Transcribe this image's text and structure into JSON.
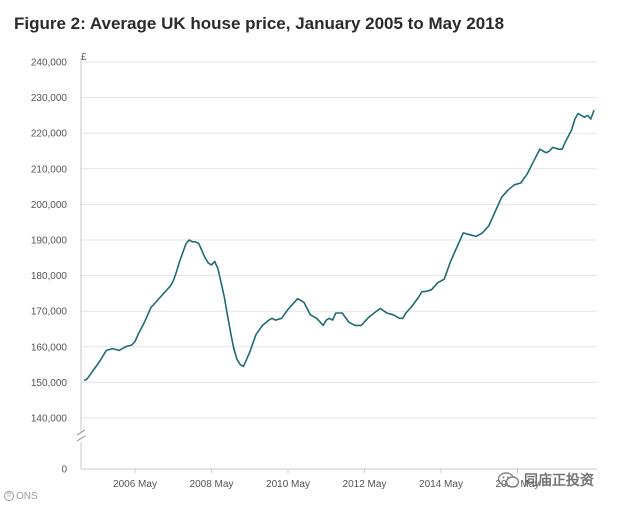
{
  "figure": {
    "title": "Figure 2: Average UK house price, January 2005 to May 2018"
  },
  "footer": {
    "credit": "ONS"
  },
  "watermark": {
    "text": "同庙正投资"
  },
  "colors": {
    "line": "#1f6b73",
    "grid": "#e3e3e3",
    "axis": "#c8c8c8",
    "text": "#555555"
  },
  "chart_data": {
    "type": "line",
    "title": "Figure 2: Average UK house price, January 2005 to May 2018",
    "unit_label": "£",
    "xlabel": "",
    "ylabel": "",
    "ylim": [
      140000,
      240000
    ],
    "y_axis_broken": true,
    "grid": true,
    "y_ticks": [
      {
        "value": 240000,
        "label": "240,000"
      },
      {
        "value": 230000,
        "label": "230,000"
      },
      {
        "value": 220000,
        "label": "220,000"
      },
      {
        "value": 210000,
        "label": "210,000"
      },
      {
        "value": 200000,
        "label": "200,000"
      },
      {
        "value": 190000,
        "label": "190,000"
      },
      {
        "value": 180000,
        "label": "180,000"
      },
      {
        "value": 170000,
        "label": "170,000"
      },
      {
        "value": 160000,
        "label": "160,000"
      },
      {
        "value": 150000,
        "label": "150,000"
      },
      {
        "value": 140000,
        "label": "140,000"
      }
    ],
    "zero_label": "0",
    "x_ticks": [
      {
        "date": "2006-05",
        "label": "2006 May"
      },
      {
        "date": "2008-05",
        "label": "2008 May"
      },
      {
        "date": "2010-05",
        "label": "2010 May"
      },
      {
        "date": "2012-05",
        "label": "2012 May"
      },
      {
        "date": "2014-05",
        "label": "2014 May"
      },
      {
        "date": "2016-05",
        "label": "2016 May"
      }
    ],
    "x_range": [
      "2005-01",
      "2018-05"
    ],
    "series": [
      {
        "points": [
          [
            "2005-01",
            150500
          ],
          [
            "2005-02",
            151000
          ],
          [
            "2005-04",
            153500
          ],
          [
            "2005-06",
            156000
          ],
          [
            "2005-08",
            159000
          ],
          [
            "2005-10",
            159500
          ],
          [
            "2005-12",
            159000
          ],
          [
            "2006-02",
            160000
          ],
          [
            "2006-04",
            160500
          ],
          [
            "2006-05",
            161500
          ],
          [
            "2006-06",
            163500
          ],
          [
            "2006-08",
            167000
          ],
          [
            "2006-10",
            171000
          ],
          [
            "2006-12",
            173000
          ],
          [
            "2007-02",
            175000
          ],
          [
            "2007-04",
            177000
          ],
          [
            "2007-05",
            178500
          ],
          [
            "2007-06",
            181000
          ],
          [
            "2007-07",
            184000
          ],
          [
            "2007-08",
            186500
          ],
          [
            "2007-09",
            189000
          ],
          [
            "2007-10",
            190000
          ],
          [
            "2007-11",
            189500
          ],
          [
            "2007-12",
            189500
          ],
          [
            "2008-01",
            189000
          ],
          [
            "2008-02",
            187000
          ],
          [
            "2008-03",
            185000
          ],
          [
            "2008-04",
            183500
          ],
          [
            "2008-05",
            183000
          ],
          [
            "2008-06",
            184000
          ],
          [
            "2008-07",
            182000
          ],
          [
            "2008-08",
            178000
          ],
          [
            "2008-09",
            174000
          ],
          [
            "2008-10",
            169000
          ],
          [
            "2008-11",
            164000
          ],
          [
            "2008-12",
            159500
          ],
          [
            "2009-01",
            156500
          ],
          [
            "2009-02",
            155000
          ],
          [
            "2009-03",
            154500
          ],
          [
            "2009-04",
            156500
          ],
          [
            "2009-05",
            158500
          ],
          [
            "2009-06",
            161000
          ],
          [
            "2009-07",
            163500
          ],
          [
            "2009-09",
            166000
          ],
          [
            "2009-11",
            167500
          ],
          [
            "2009-12",
            168000
          ],
          [
            "2010-01",
            167500
          ],
          [
            "2010-03",
            168000
          ],
          [
            "2010-05",
            170500
          ],
          [
            "2010-07",
            172500
          ],
          [
            "2010-08",
            173500
          ],
          [
            "2010-10",
            172500
          ],
          [
            "2010-12",
            169000
          ],
          [
            "2011-02",
            168000
          ],
          [
            "2011-04",
            166000
          ],
          [
            "2011-05",
            167500
          ],
          [
            "2011-06",
            168000
          ],
          [
            "2011-07",
            167500
          ],
          [
            "2011-08",
            169500
          ],
          [
            "2011-10",
            169500
          ],
          [
            "2011-12",
            167000
          ],
          [
            "2012-02",
            166000
          ],
          [
            "2012-04",
            166000
          ],
          [
            "2012-06",
            168000
          ],
          [
            "2012-08",
            169500
          ],
          [
            "2012-10",
            170800
          ],
          [
            "2012-12",
            169500
          ],
          [
            "2013-02",
            169000
          ],
          [
            "2013-04",
            168000
          ],
          [
            "2013-05",
            168000
          ],
          [
            "2013-06",
            169500
          ],
          [
            "2013-08",
            171500
          ],
          [
            "2013-10",
            174000
          ],
          [
            "2013-11",
            175500
          ],
          [
            "2013-12",
            175500
          ],
          [
            "2014-02",
            176000
          ],
          [
            "2014-04",
            178000
          ],
          [
            "2014-06",
            179000
          ],
          [
            "2014-08",
            184000
          ],
          [
            "2014-10",
            188000
          ],
          [
            "2014-12",
            192000
          ],
          [
            "2015-02",
            191500
          ],
          [
            "2015-04",
            191000
          ],
          [
            "2015-06",
            192000
          ],
          [
            "2015-08",
            194000
          ],
          [
            "2015-10",
            198000
          ],
          [
            "2015-12",
            202000
          ],
          [
            "2016-02",
            204000
          ],
          [
            "2016-04",
            205500
          ],
          [
            "2016-06",
            206000
          ],
          [
            "2016-08",
            208500
          ],
          [
            "2016-10",
            212000
          ],
          [
            "2016-12",
            215500
          ],
          [
            "2017-02",
            214500
          ],
          [
            "2017-03",
            215000
          ],
          [
            "2017-04",
            216000
          ],
          [
            "2017-06",
            215500
          ],
          [
            "2017-07",
            215500
          ],
          [
            "2017-08",
            217500
          ],
          [
            "2017-10",
            221000
          ],
          [
            "2017-11",
            224000
          ],
          [
            "2017-12",
            225500
          ],
          [
            "2018-01",
            225000
          ],
          [
            "2018-02",
            224500
          ],
          [
            "2018-03",
            225000
          ],
          [
            "2018-04",
            224000
          ],
          [
            "2018-05",
            226500
          ]
        ]
      }
    ]
  }
}
